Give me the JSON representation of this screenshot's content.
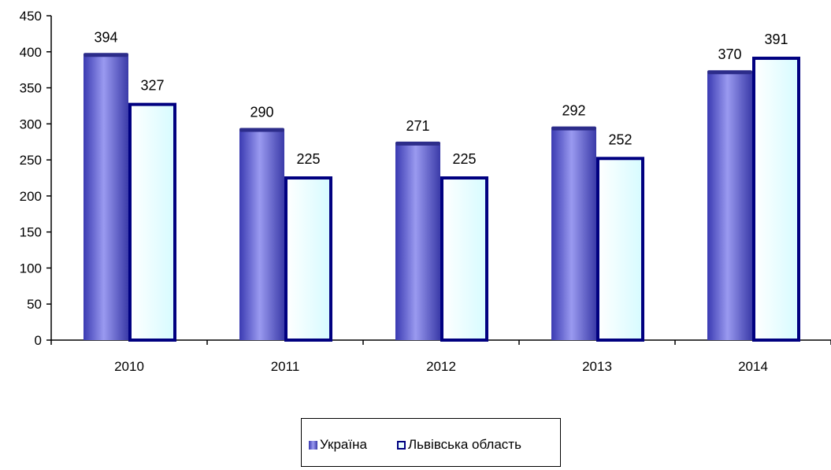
{
  "chart_data": {
    "type": "bar",
    "categories": [
      "2010",
      "2011",
      "2012",
      "2013",
      "2014"
    ],
    "series": [
      {
        "name": "Україна",
        "values": [
          394,
          290,
          271,
          292,
          370
        ],
        "color": "#6b6bd6"
      },
      {
        "name": "Львівська область",
        "values": [
          327,
          225,
          225,
          252,
          391
        ],
        "color": "#eaffff",
        "border": "#000080"
      }
    ],
    "yticks": [
      "0",
      "50",
      "100",
      "150",
      "200",
      "250",
      "300",
      "350",
      "400",
      "450"
    ],
    "ylim": [
      0,
      450
    ],
    "title": "",
    "xlabel": "",
    "ylabel": "",
    "grid": false,
    "legend": "bottom"
  }
}
